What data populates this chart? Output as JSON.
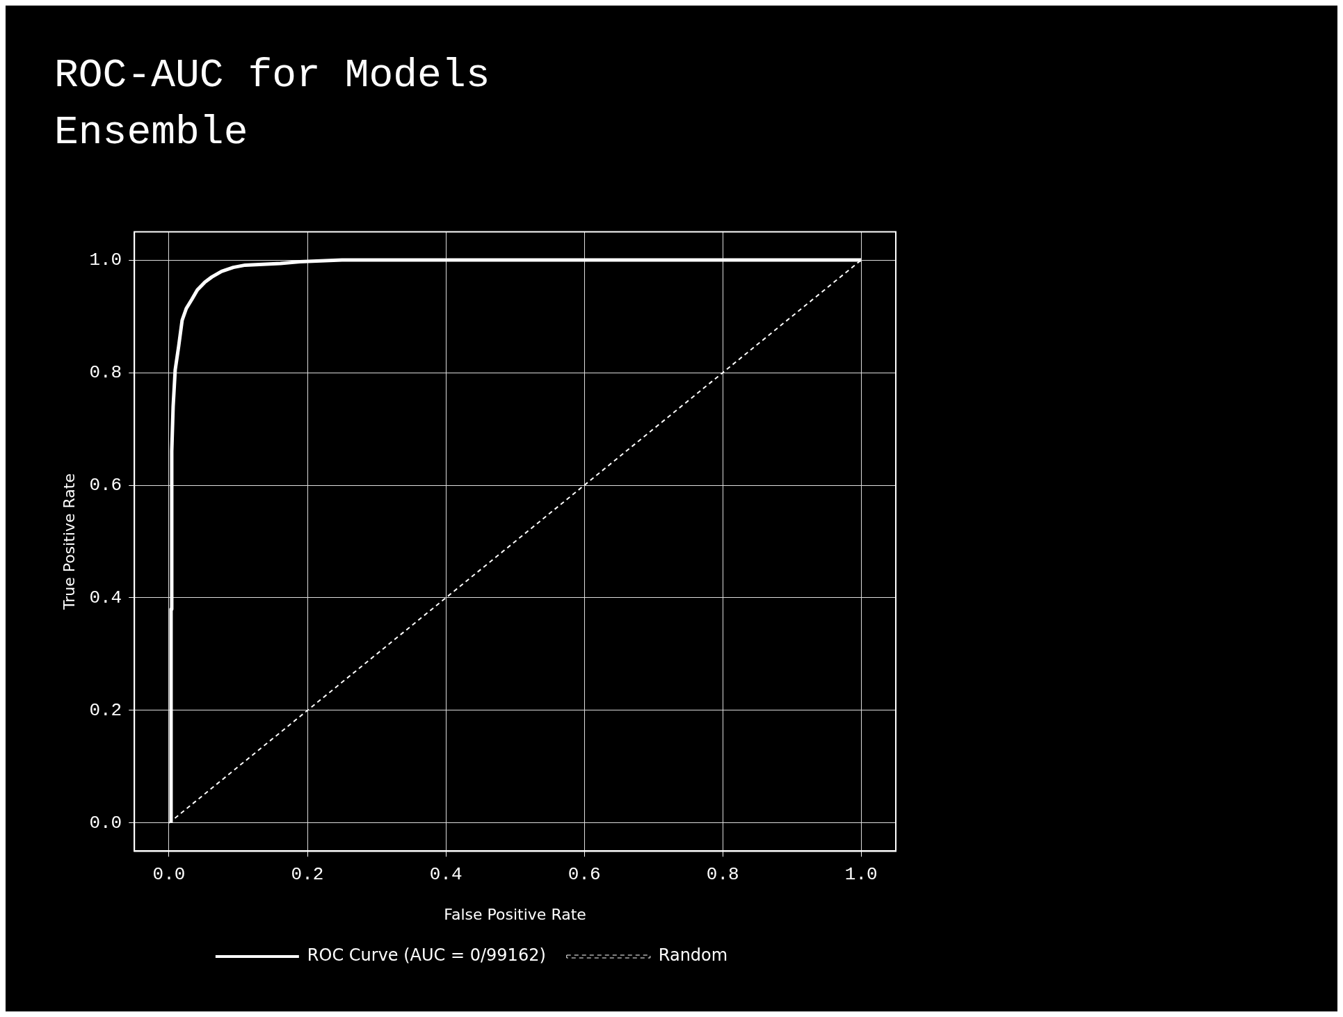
{
  "chart_data": {
    "type": "line",
    "title": "ROC-AUC for Models Ensemble",
    "xlabel": "False Positive Rate",
    "ylabel": "True Positive Rate",
    "xlim": [
      -0.05,
      1.05
    ],
    "ylim": [
      -0.05,
      1.05
    ],
    "xticks": [
      {
        "value": 0,
        "label": "0.0"
      },
      {
        "value": 0.2,
        "label": "0.2"
      },
      {
        "value": 0.4,
        "label": "0.4"
      },
      {
        "value": 0.6,
        "label": "0.6"
      },
      {
        "value": 0.8,
        "label": "0.8"
      },
      {
        "value": 1,
        "label": "1.0"
      }
    ],
    "yticks": [
      {
        "value": 0,
        "label": "0.0"
      },
      {
        "value": 0.2,
        "label": "0.2"
      },
      {
        "value": 0.4,
        "label": "0.4"
      },
      {
        "value": 0.6,
        "label": "0.6"
      },
      {
        "value": 0.8,
        "label": "0.8"
      },
      {
        "value": 1,
        "label": "1.0"
      }
    ],
    "grid": true,
    "legend": "bottom",
    "marker": "none",
    "series": [
      {
        "name": "ROC Curve (AUC = 0/99162)",
        "color": "#ffffff",
        "line_style": "solid",
        "x": [
          0.003,
          0.003,
          0.004,
          0.004,
          0.006,
          0.009,
          0.014,
          0.019,
          0.025,
          0.033,
          0.041,
          0.052,
          0.062,
          0.076,
          0.093,
          0.11,
          0.161,
          0.189,
          0.25,
          1.0
        ],
        "values": [
          0,
          0.38,
          0.38,
          0.66,
          0.74,
          0.805,
          0.847,
          0.893,
          0.914,
          0.93,
          0.947,
          0.961,
          0.97,
          0.98,
          0.987,
          0.991,
          0.994,
          0.997,
          1.0,
          1.0
        ]
      },
      {
        "name": "Random",
        "color": "#ffffff",
        "line_style": "dashed",
        "x": [
          0,
          1
        ],
        "values": [
          0,
          1
        ]
      }
    ]
  }
}
